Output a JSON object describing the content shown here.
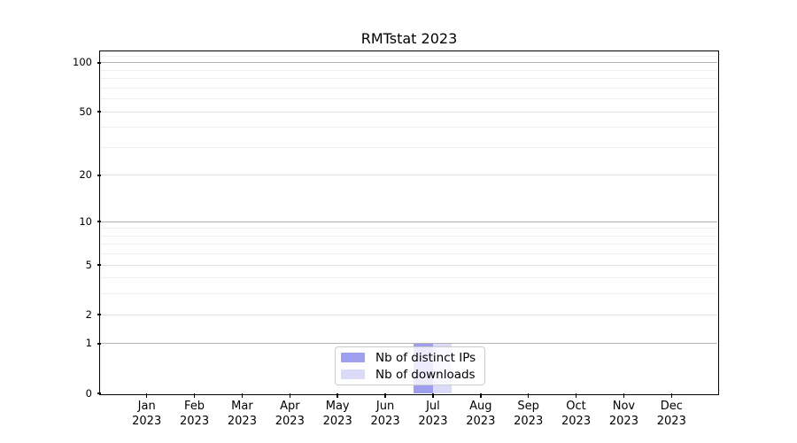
{
  "chart_data": {
    "type": "bar",
    "title": "RMTstat 2023",
    "x_tick_months": [
      "Jan",
      "Feb",
      "Mar",
      "Apr",
      "May",
      "Jun",
      "Jul",
      "Aug",
      "Sep",
      "Oct",
      "Nov",
      "Dec"
    ],
    "x_tick_year": "2023",
    "series": [
      {
        "name": "Nb of distinct IPs",
        "color": "#9f9ff0",
        "values": [
          0,
          0,
          0,
          0,
          0,
          0,
          1,
          0,
          0,
          0,
          0,
          0
        ]
      },
      {
        "name": "Nb of downloads",
        "color": "#dbdbf9",
        "values": [
          0,
          0,
          0,
          0,
          0,
          0,
          1,
          0,
          0,
          0,
          0,
          0
        ]
      }
    ],
    "y_major_ticks": [
      0,
      1,
      2,
      5,
      10,
      20,
      50,
      100
    ],
    "y_power_ticks": [
      1,
      10,
      100
    ],
    "y_minor_ticks": [
      3,
      4,
      6,
      7,
      8,
      9,
      30,
      40,
      60,
      70,
      80,
      90,
      110
    ],
    "y_scale": "log1p",
    "ylim": [
      0,
      116
    ],
    "grid": true,
    "legend_position": "lower-center"
  },
  "colors": {
    "grid_power": "#b3b3b3",
    "grid_major": "#e0e0e0",
    "grid_minor": "#efefef",
    "spine": "#000000",
    "background": "#ffffff"
  }
}
